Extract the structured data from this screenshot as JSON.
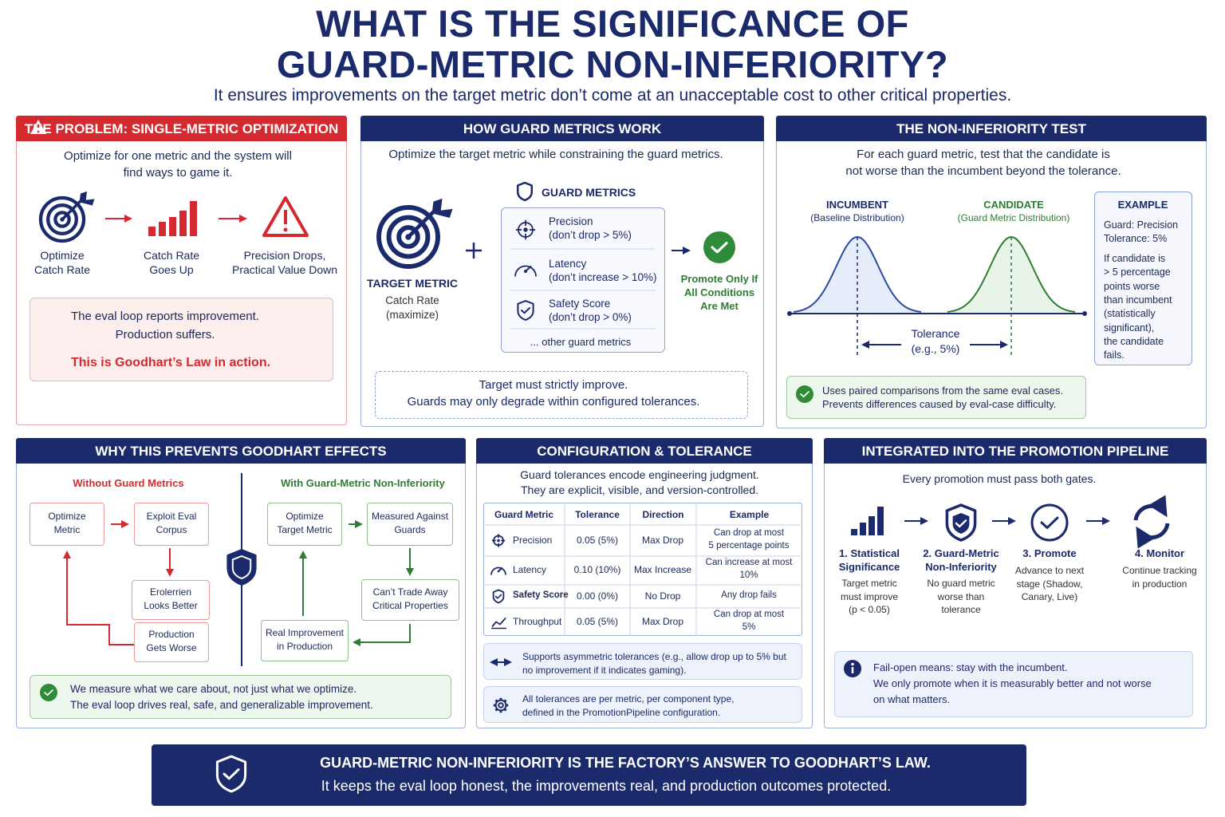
{
  "header": {
    "title_lines": [
      "WHAT IS THE SIGNIFICANCE OF",
      "GUARD-METRIC NON-INFERIORITY?"
    ],
    "subtitle": "It ensures improvements on the target metric don’t come at an unacceptable cost to other critical properties."
  },
  "problem": {
    "title": "THE PROBLEM: SINGLE-METRIC OPTIMIZATION",
    "intro": [
      "Optimize for one metric and the system will",
      "find ways to game it."
    ],
    "steps": [
      [
        "Optimize",
        "Catch Rate"
      ],
      [
        "Catch Rate",
        "Goes Up"
      ],
      [
        "Precision Drops,",
        "Practical Value Down"
      ]
    ],
    "callout": [
      "The eval loop reports improvement.",
      "Production suffers."
    ],
    "emphasis": "This is Goodhart’s Law in action."
  },
  "how": {
    "title": "HOW GUARD METRICS WORK",
    "intro": "Optimize the target metric while constraining the guard metrics.",
    "target_label": "TARGET METRIC",
    "target_sub": [
      "Catch Rate",
      "(maximize)"
    ],
    "guards_title": "GUARD METRICS",
    "guards": [
      {
        "name": "Precision",
        "rule": "(don’t drop > 5%)"
      },
      {
        "name": "Latency",
        "rule": "(don’t increase > 10%)"
      },
      {
        "name": "Safety Score",
        "rule": "(don’t drop > 0%)"
      }
    ],
    "more": "... other guard metrics",
    "result": [
      "Promote Only If",
      "All Conditions",
      "Are Met"
    ],
    "note": [
      "Target must strictly improve.",
      "Guards may only degrade within configured tolerances."
    ]
  },
  "test": {
    "title": "THE NON-INFERIORITY TEST",
    "intro": [
      "For each guard metric, test that the candidate is",
      "not worse than the incumbent beyond the tolerance."
    ],
    "incumbent": [
      "INCUMBENT",
      "(Baseline Distribution)"
    ],
    "candidate": [
      "CANDIDATE",
      "(Guard Metric Distribution)"
    ],
    "tolerance": [
      "Tolerance",
      "(e.g., 5%)"
    ],
    "example_title": "EXAMPLE",
    "example_lines": [
      "Guard: Precision",
      "Tolerance: 5%"
    ],
    "example_body": [
      "If candidate is",
      "> 5 percentage",
      "points worse",
      "than incumbent",
      "(statistically",
      "significant),",
      "the candidate",
      "fails."
    ],
    "note": [
      "Uses paired comparisons from the same eval cases.",
      "Prevents differences caused by eval-case difficulty."
    ]
  },
  "why": {
    "title": "WHY THIS PREVENTS GOODHART EFFECTS",
    "without_title": "Without Guard Metrics",
    "without_boxes": [
      [
        "Optimize",
        "Metric"
      ],
      [
        "Exploit Eval",
        "Corpus"
      ],
      [
        "Erolerrien",
        "Looks Better"
      ],
      [
        "Production",
        "Gets Worse"
      ]
    ],
    "with_title": "With Guard-Metric Non-Inferiority",
    "with_boxes": [
      [
        "Optimize",
        "Target Metric"
      ],
      [
        "Measured Against",
        "Guards"
      ],
      [
        "Can’t Trade Away",
        "Critical Properties"
      ],
      [
        "Real Improvement",
        "in Production"
      ]
    ],
    "note": [
      "We measure what we care about, not just what we optimize.",
      "The eval loop drives real, safe, and generalizable improvement."
    ]
  },
  "config": {
    "title": "CONFIGURATION & TOLERANCE",
    "intro": [
      "Guard tolerances encode engineering judgment.",
      "They are explicit, visible, and version-controlled."
    ],
    "table": {
      "header": [
        "Guard Metric",
        "Tolerance",
        "Direction",
        "Example"
      ],
      "rows": [
        {
          "metric": "Precision",
          "tolerance": "0.05 (5%)",
          "direction": "Max Drop",
          "example": [
            "Can drop at most",
            "5 percentage points"
          ]
        },
        {
          "metric": "Latency",
          "tolerance": "0.10 (10%)",
          "direction": "Max Increase",
          "example": [
            "Can increase at most",
            "10%"
          ]
        },
        {
          "metric": "Safety Score",
          "tolerance": "0.00 (0%)",
          "direction": "No Drop",
          "example": [
            "Any drop fails"
          ]
        },
        {
          "metric": "Throughput",
          "tolerance": "0.05 (5%)",
          "direction": "Max Drop",
          "example": [
            "Can drop at most",
            "5%"
          ]
        }
      ]
    },
    "notes": [
      [
        "Supports asymmetric tolerances (e.g., allow drop up to 5% but",
        "no improvement if it indicates gaming)."
      ],
      [
        "All tolerances are per metric, per component type,",
        "defined in the PromotionPipeline configuration."
      ]
    ]
  },
  "pipeline": {
    "title": "INTEGRATED INTO THE PROMOTION PIPELINE",
    "intro": "Every promotion must pass both gates.",
    "steps": [
      {
        "title": [
          "1. Statistical",
          "Significance"
        ],
        "body": [
          "Target metric",
          "must improve",
          "(p < 0.05)"
        ]
      },
      {
        "title": [
          "2. Guard-Metric",
          "Non-Inferiority"
        ],
        "body": [
          "No guard metric",
          "worse than",
          "tolerance"
        ]
      },
      {
        "title": [
          "3. Promote"
        ],
        "body": [
          "Advance to next",
          "stage (Shadow,",
          "Canary, Live)"
        ]
      },
      {
        "title": [
          "4. Monitor"
        ],
        "body": [
          "Continue tracking",
          "in production"
        ]
      }
    ],
    "note": [
      "Fail-open means: stay with the incumbent.",
      "We only promote when it is measurably better and not worse",
      "on what matters."
    ]
  },
  "footer": {
    "title": "GUARD-METRIC NON-INFERIORITY IS THE FACTORY’S ANSWER TO GOODHART’S LAW.",
    "subtitle": "It keeps the eval loop honest, the improvements real, and production outcomes protected."
  }
}
